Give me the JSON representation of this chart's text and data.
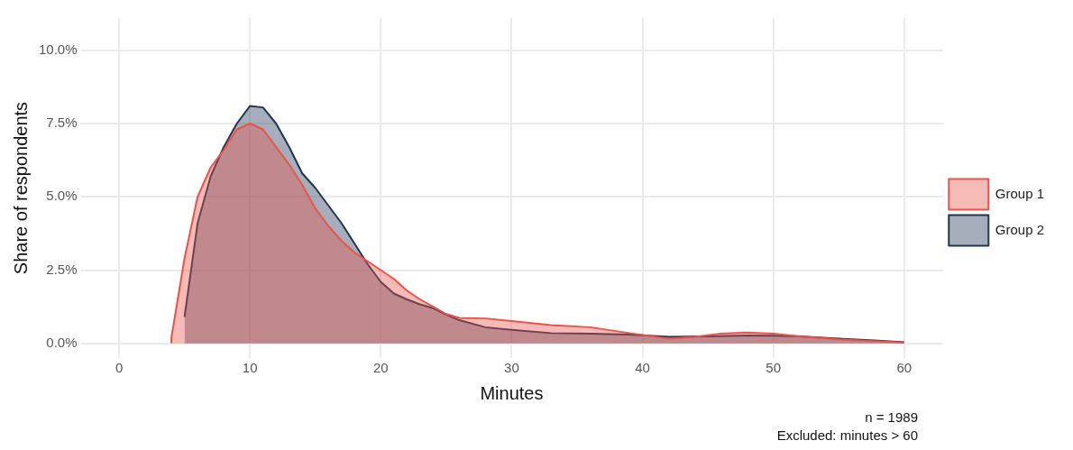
{
  "chart_data": {
    "type": "area",
    "xlabel": "Minutes",
    "ylabel": "Share of respondents",
    "xlim": [
      -3,
      63
    ],
    "xticks": [
      0,
      10,
      20,
      30,
      40,
      50,
      60
    ],
    "ylim": [
      -0.5,
      11.1
    ],
    "yticks": [
      {
        "value": 0,
        "label": "0.0%"
      },
      {
        "value": 2.5,
        "label": "2.5%"
      },
      {
        "value": 5,
        "label": "5.0%"
      },
      {
        "value": 7.5,
        "label": "7.5%"
      },
      {
        "value": 10,
        "label": "10.0%"
      }
    ],
    "grid": true,
    "legend": "right",
    "annotations": [
      "n = 1989",
      "Excluded: minutes > 60"
    ],
    "series": [
      {
        "name": "Group 1",
        "color": "#e8534a",
        "x": [
          4,
          4,
          5,
          6,
          7,
          8,
          9,
          10,
          11,
          12,
          13,
          14,
          15,
          16,
          17,
          18,
          19,
          20,
          21,
          22,
          23,
          24,
          25,
          26,
          28,
          30,
          33,
          36,
          39,
          42,
          44,
          46,
          48,
          50,
          52,
          55,
          58,
          60
        ],
        "values": [
          0,
          0.2,
          2.9,
          5.0,
          6.0,
          6.6,
          7.3,
          7.5,
          7.3,
          6.7,
          6.1,
          5.4,
          4.6,
          4.0,
          3.5,
          3.1,
          2.8,
          2.5,
          2.2,
          1.8,
          1.5,
          1.25,
          1.0,
          0.87,
          0.85,
          0.76,
          0.62,
          0.55,
          0.35,
          0.16,
          0.22,
          0.33,
          0.37,
          0.33,
          0.24,
          0.14,
          0.07,
          0.03
        ]
      },
      {
        "name": "Group 2",
        "color": "#1f3552",
        "x": [
          5,
          6,
          7,
          8,
          9,
          10,
          11,
          12,
          13,
          14,
          15,
          16,
          17,
          18,
          19,
          20,
          21,
          22,
          23,
          24,
          25,
          26,
          28,
          30,
          33,
          36,
          39,
          42,
          45,
          48,
          50,
          52,
          55,
          58,
          60
        ],
        "values": [
          0.9,
          4.1,
          5.7,
          6.7,
          7.5,
          8.1,
          8.05,
          7.5,
          6.7,
          5.8,
          5.3,
          4.7,
          4.1,
          3.4,
          2.7,
          2.1,
          1.7,
          1.5,
          1.33,
          1.2,
          0.98,
          0.79,
          0.55,
          0.46,
          0.35,
          0.33,
          0.3,
          0.22,
          0.24,
          0.27,
          0.26,
          0.24,
          0.16,
          0.09,
          0.04
        ]
      }
    ]
  }
}
